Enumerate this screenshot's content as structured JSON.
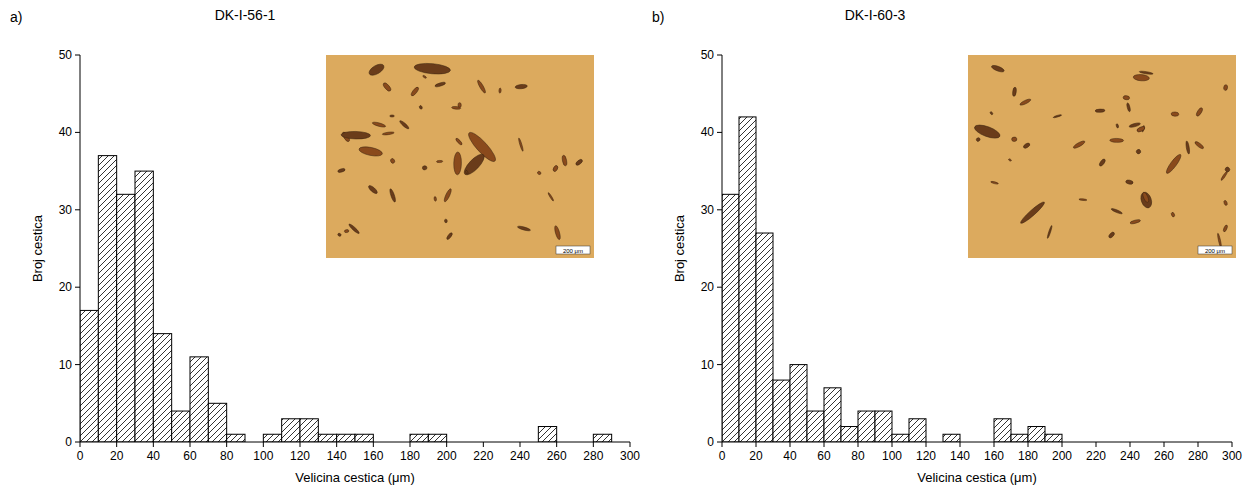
{
  "chart_data": [
    {
      "type": "histogram",
      "panel": "a)",
      "title": "DK-I-56-1",
      "x_label": "Velicina cestica (μm)",
      "y_label": "Broj cestica",
      "bins": [
        0,
        10,
        20,
        30,
        40,
        50,
        60,
        70,
        80,
        90,
        100,
        110,
        120,
        130,
        140,
        150,
        160,
        170,
        180,
        190,
        200,
        210,
        220,
        230,
        240,
        250,
        260,
        270,
        280,
        290,
        300
      ],
      "values": [
        17,
        37,
        32,
        35,
        14,
        4,
        11,
        5,
        1,
        0,
        1,
        3,
        3,
        1,
        1,
        1,
        0,
        0,
        1,
        1,
        0,
        0,
        0,
        0,
        0,
        2,
        0,
        0,
        1,
        0
      ],
      "color": "#000000",
      "xlim": [
        0,
        300
      ],
      "xticks": [
        0,
        20,
        40,
        60,
        80,
        100,
        120,
        140,
        160,
        180,
        200,
        220,
        240,
        260,
        280,
        300
      ],
      "ylim": [
        0,
        50
      ],
      "yticks": [
        0,
        10,
        20,
        30,
        40,
        50
      ],
      "annotations": [
        "200 μm"
      ]
    },
    {
      "type": "histogram",
      "panel": "b)",
      "title": "DK-I-60-3",
      "x_label": "Velicina cestica (μm)",
      "y_label": "Broj cestica",
      "bins": [
        0,
        10,
        20,
        30,
        40,
        50,
        60,
        70,
        80,
        90,
        100,
        110,
        120,
        130,
        140,
        150,
        160,
        170,
        180,
        190,
        200,
        210,
        220,
        230,
        240,
        250,
        260,
        270,
        280,
        290,
        300
      ],
      "values": [
        32,
        42,
        27,
        8,
        10,
        4,
        7,
        2,
        4,
        4,
        1,
        3,
        0,
        1,
        0,
        0,
        3,
        1,
        2,
        1,
        0,
        0,
        0,
        0,
        0,
        0,
        0,
        0,
        0,
        0
      ],
      "color": "#000000",
      "xlim": [
        0,
        300
      ],
      "xticks": [
        0,
        20,
        40,
        60,
        80,
        100,
        120,
        140,
        160,
        180,
        200,
        220,
        240,
        260,
        280,
        300
      ],
      "ylim": [
        0,
        50
      ],
      "yticks": [
        0,
        10,
        20,
        30,
        40,
        50
      ],
      "annotations": [
        "200 μm"
      ]
    }
  ]
}
